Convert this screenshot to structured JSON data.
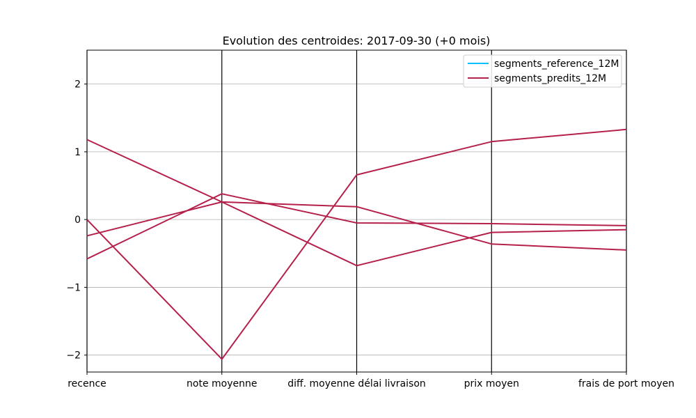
{
  "chart_data": {
    "type": "line",
    "title": "Evolution des centroides: 2017-09-30 (+0 mois)",
    "categories": [
      "recence",
      "note moyenne",
      "diff. moyenne délai livraison",
      "prix moyen",
      "frais de port moyen"
    ],
    "ylim": [
      -2.25,
      2.5
    ],
    "yticks": [
      -2,
      -1,
      0,
      1,
      2
    ],
    "ytick_labels": [
      "−2",
      "−1",
      "0",
      "1",
      "2"
    ],
    "grid": "horizontal",
    "legend_position": "top-right",
    "legend": [
      "segments_reference_12M",
      "segments_predits_12M"
    ],
    "series_colors": {
      "segments_reference_12M": "#00bfff",
      "segments_predits_12M": "#b5204a"
    },
    "series": [
      {
        "group": "segments_predits_12M",
        "values": [
          1.18,
          0.26,
          0.19,
          -0.36,
          -0.45
        ]
      },
      {
        "group": "segments_predits_12M",
        "values": [
          0.0,
          -2.06,
          0.66,
          1.15,
          1.33
        ]
      },
      {
        "group": "segments_predits_12M",
        "values": [
          -0.24,
          0.26,
          -0.68,
          -0.19,
          -0.15
        ]
      },
      {
        "group": "segments_predits_12M",
        "values": [
          -0.58,
          0.38,
          -0.05,
          -0.06,
          -0.09
        ]
      }
    ]
  }
}
